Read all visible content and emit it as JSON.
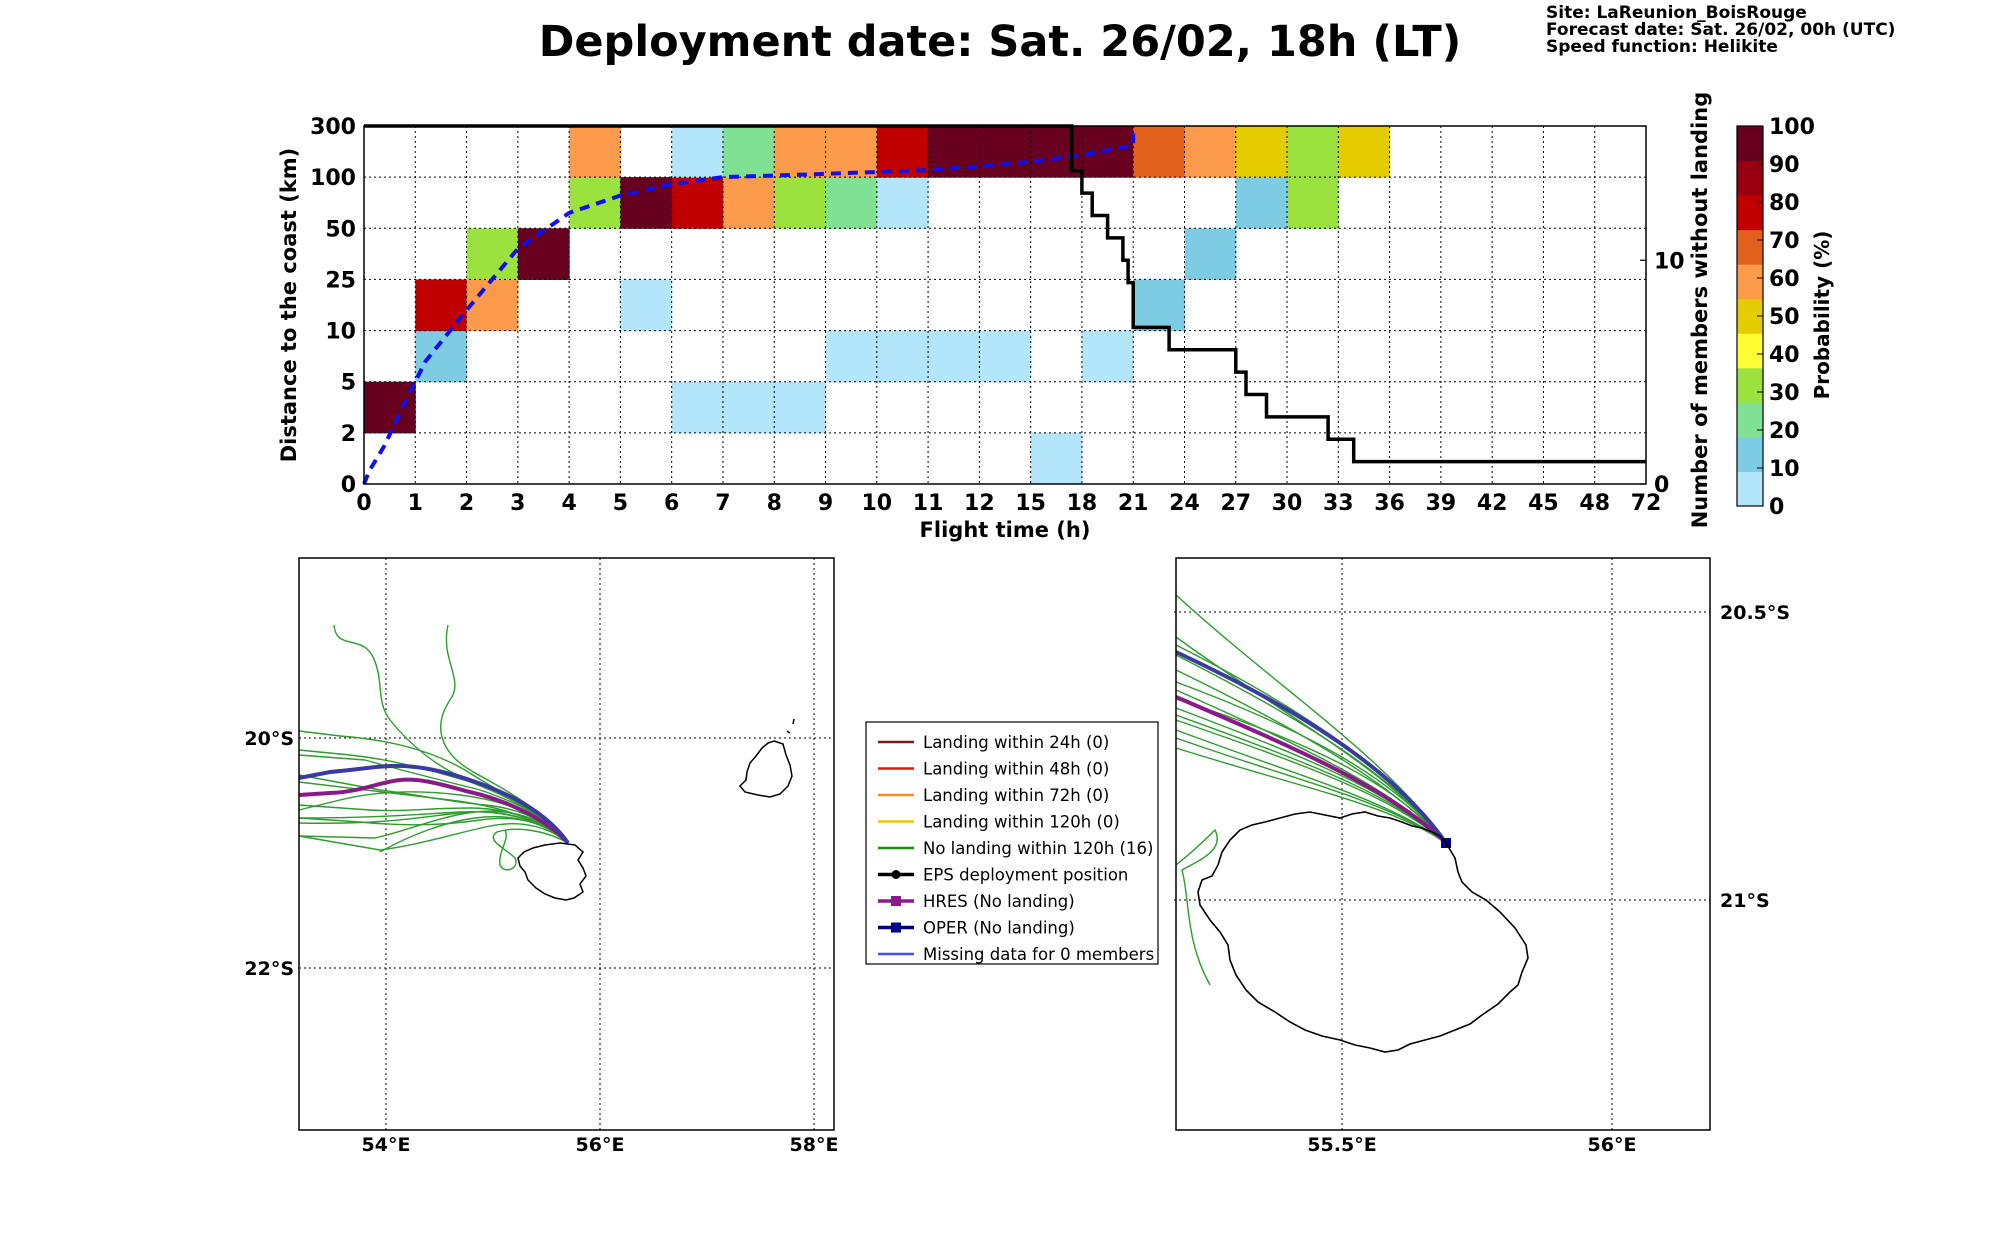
{
  "header": {
    "title": "Deployment date: Sat. 26/02, 18h (LT)",
    "site": "Site: LaReunion_BoisRouge",
    "forecast": "Forecast date: Sat. 26/02, 00h (UTC)",
    "speed": "Speed function: Helikite"
  },
  "chart_data": [
    {
      "type": "heatmap",
      "xlabel": "Flight time (h)",
      "ylabel": "Distance to the coast (km)",
      "y2label": "Number of members without landing",
      "x_tick_labels": [
        "0",
        "1",
        "2",
        "3",
        "4",
        "5",
        "6",
        "7",
        "8",
        "9",
        "10",
        "11",
        "12",
        "15",
        "18",
        "21",
        "24",
        "27",
        "30",
        "33",
        "36",
        "39",
        "42",
        "45",
        "48",
        "72"
      ],
      "y_tick_labels": [
        "0",
        "2",
        "5",
        "10",
        "25",
        "50",
        "100",
        "300"
      ],
      "y2_ticks": [
        0,
        10
      ],
      "y2_range": [
        0,
        16
      ],
      "colorbar": {
        "label": "Probability (%)",
        "ticks": [
          "0",
          "10",
          "20",
          "30",
          "40",
          "50",
          "60",
          "70",
          "80",
          "90",
          "100"
        ],
        "colors": [
          "#b3e5fb",
          "#7ecbe4",
          "#80e093",
          "#9ce23f",
          "#ffff33",
          "#e5cc00",
          "#fd9b4c",
          "#e2621d",
          "#c00000",
          "#980010",
          "#680020"
        ]
      },
      "cells": [
        {
          "x": 0,
          "y": 1,
          "p": 100
        },
        {
          "x": 1,
          "y": 2,
          "p": 10
        },
        {
          "x": 1,
          "y": 3,
          "p": 80
        },
        {
          "x": 2,
          "y": 3,
          "p": 60
        },
        {
          "x": 2,
          "y": 4,
          "p": 30
        },
        {
          "x": 3,
          "y": 4,
          "p": 100
        },
        {
          "x": 4,
          "y": 5,
          "p": 30
        },
        {
          "x": 4,
          "y": 6,
          "p": 60
        },
        {
          "x": 5,
          "y": 3,
          "p": 0
        },
        {
          "x": 5,
          "y": 5,
          "p": 100
        },
        {
          "x": 6,
          "y": 1,
          "p": 0
        },
        {
          "x": 6,
          "y": 5,
          "p": 80
        },
        {
          "x": 6,
          "y": 6,
          "p": 0
        },
        {
          "x": 7,
          "y": 1,
          "p": 0
        },
        {
          "x": 7,
          "y": 5,
          "p": 60
        },
        {
          "x": 7,
          "y": 6,
          "p": 20
        },
        {
          "x": 8,
          "y": 1,
          "p": 0
        },
        {
          "x": 8,
          "y": 5,
          "p": 30
        },
        {
          "x": 8,
          "y": 6,
          "p": 60
        },
        {
          "x": 9,
          "y": 2,
          "p": 0
        },
        {
          "x": 9,
          "y": 5,
          "p": 20
        },
        {
          "x": 9,
          "y": 6,
          "p": 60
        },
        {
          "x": 10,
          "y": 2,
          "p": 0
        },
        {
          "x": 10,
          "y": 5,
          "p": 0
        },
        {
          "x": 10,
          "y": 6,
          "p": 80
        },
        {
          "x": 11,
          "y": 2,
          "p": 0
        },
        {
          "x": 11,
          "y": 6,
          "p": 100
        },
        {
          "x": 12,
          "y": 2,
          "p": 0
        },
        {
          "x": 12,
          "y": 6,
          "p": 100
        },
        {
          "x": 13,
          "y": 0,
          "p": 0
        },
        {
          "x": 13,
          "y": 6,
          "p": 100
        },
        {
          "x": 14,
          "y": 2,
          "p": 0
        },
        {
          "x": 14,
          "y": 6,
          "p": 100
        },
        {
          "x": 15,
          "y": 3,
          "p": 10
        },
        {
          "x": 15,
          "y": 6,
          "p": 70
        },
        {
          "x": 16,
          "y": 4,
          "p": 10
        },
        {
          "x": 16,
          "y": 6,
          "p": 60
        },
        {
          "x": 17,
          "y": 5,
          "p": 10
        },
        {
          "x": 17,
          "y": 6,
          "p": 50
        },
        {
          "x": 18,
          "y": 5,
          "p": 30
        },
        {
          "x": 18,
          "y": 6,
          "p": 30
        },
        {
          "x": 19,
          "y": 6,
          "p": 50
        }
      ],
      "mean_distance_km": [
        [
          0,
          0
        ],
        [
          0.1,
          0.5
        ],
        [
          0.4,
          1.5
        ],
        [
          0.8,
          3.8
        ],
        [
          1.2,
          7
        ],
        [
          2,
          16
        ],
        [
          3,
          40
        ],
        [
          4,
          65
        ],
        [
          5,
          82
        ],
        [
          6,
          93
        ],
        [
          7,
          100
        ],
        [
          8,
          106
        ],
        [
          9,
          113
        ],
        [
          10,
          120
        ],
        [
          11,
          128
        ],
        [
          12,
          142
        ],
        [
          13,
          160
        ],
        [
          14,
          185
        ],
        [
          15,
          225
        ],
        [
          15,
          300
        ]
      ],
      "members_without_landing": [
        [
          0,
          16
        ],
        [
          13.8,
          16
        ],
        [
          13.8,
          14
        ],
        [
          14.0,
          14
        ],
        [
          14.0,
          13
        ],
        [
          14.2,
          13
        ],
        [
          14.2,
          12
        ],
        [
          14.5,
          12
        ],
        [
          14.5,
          11
        ],
        [
          14.8,
          11
        ],
        [
          14.8,
          10
        ],
        [
          14.9,
          10
        ],
        [
          14.9,
          9
        ],
        [
          15.0,
          9
        ],
        [
          15.0,
          7
        ],
        [
          15.7,
          7
        ],
        [
          15.7,
          6
        ],
        [
          17.0,
          6
        ],
        [
          17.0,
          5
        ],
        [
          17.2,
          5
        ],
        [
          17.2,
          4
        ],
        [
          17.6,
          4
        ],
        [
          17.6,
          3
        ],
        [
          18.8,
          3
        ],
        [
          18.8,
          2
        ],
        [
          19.3,
          2
        ],
        [
          19.3,
          1
        ],
        [
          25,
          1
        ]
      ]
    },
    {
      "type": "map",
      "x_tick_labels": [
        "54°E",
        "56°E",
        "58°E"
      ],
      "y_tick_labels": [
        "20°S",
        "22°S"
      ]
    },
    {
      "type": "map",
      "x_tick_labels": [
        "55.5°E",
        "56°E"
      ],
      "y_tick_labels": [
        "20.5°S",
        "21°S"
      ]
    }
  ],
  "legend": [
    {
      "label": "Landing within 24h (0)",
      "color": "#7b1a1a",
      "marker": false
    },
    {
      "label": "Landing within 48h (0)",
      "color": "#ee1111",
      "marker": false
    },
    {
      "label": "Landing within 72h (0)",
      "color": "#ff8c1a",
      "marker": false
    },
    {
      "label": "Landing within 120h (0)",
      "color": "#f2c800",
      "marker": false
    },
    {
      "label": "No landing within 120h (16)",
      "color": "#1a8a1a",
      "marker": false
    },
    {
      "label": "EPS deployment position",
      "color": "#000000",
      "marker": true
    },
    {
      "label": "HRES (No landing)",
      "color": "#8a1a8a",
      "marker": true
    },
    {
      "label": "OPER (No landing)",
      "color": "#000080",
      "marker": true
    },
    {
      "label": "Missing data for 0 members",
      "color": "#4a4aff",
      "marker": false
    }
  ]
}
